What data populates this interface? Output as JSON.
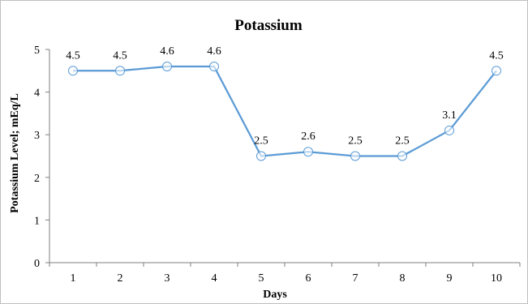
{
  "chart_data": {
    "type": "line",
    "title": "Potassium",
    "xlabel": "Days",
    "ylabel": "Potassium Level; mEq/L",
    "categories": [
      "1",
      "2",
      "3",
      "4",
      "5",
      "6",
      "7",
      "8",
      "9",
      "10"
    ],
    "series": [
      {
        "values": [
          4.5,
          4.5,
          4.6,
          4.6,
          2.5,
          2.6,
          2.5,
          2.5,
          3.1,
          4.5
        ],
        "data_labels": [
          "4.5",
          "4.5",
          "4.6",
          "4.6",
          "2.5",
          "2.6",
          "2.5",
          "2.5",
          "3.1",
          "4.5"
        ],
        "color": "#5b9bd5"
      }
    ],
    "y_ticks": [
      "0",
      "1",
      "2",
      "3",
      "4",
      "5"
    ],
    "ylim": [
      0,
      5
    ],
    "grid": false,
    "legend": "none"
  }
}
